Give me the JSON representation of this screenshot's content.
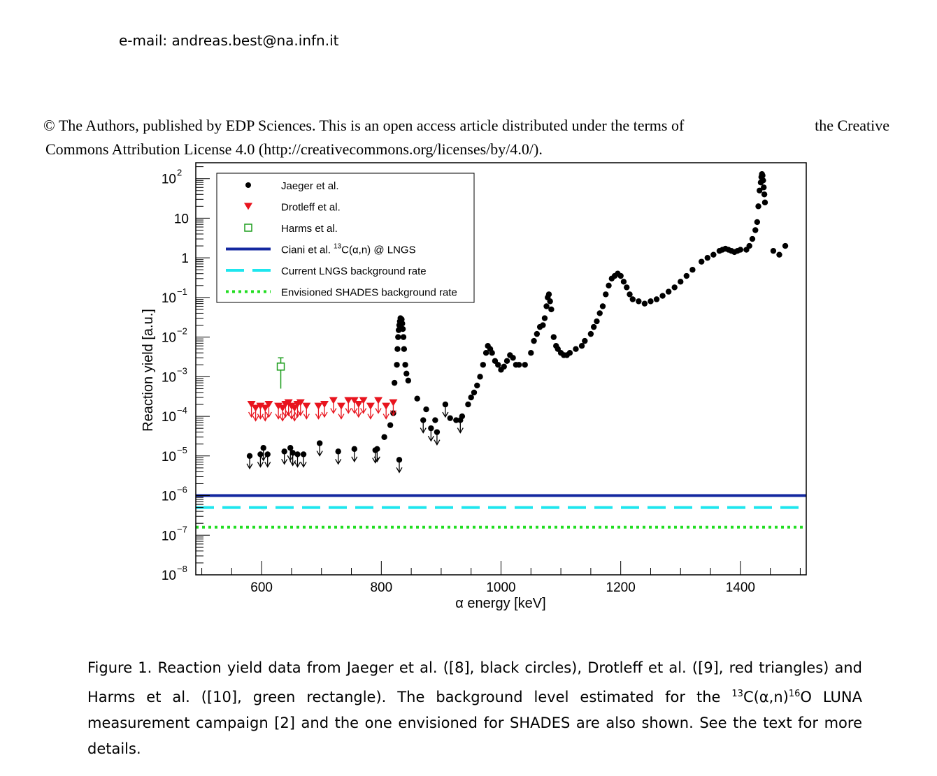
{
  "header": {
    "email": "e-mail: andreas.best@na.infn.it",
    "license_line1_left": "© The Authors, published by EDP Sciences. This is an open access article distributed under the terms of",
    "license_line1_right": "the Creative",
    "license_line2": "Commons Attribution License 4.0 (http://creativecommons.org/licenses/by/4.0/)."
  },
  "caption": {
    "part1": "Figure 1. Reaction yield data from Jaeger et al. ([8], black circles), Drotleff et al. ([9], red triangles) and Harms et al. ([10], green rectangle). The background level estimated for the ",
    "sup1": "13",
    "part2": "C(α,n)",
    "sup2": "16",
    "part3": "O LUNA measurement campaign [2] and the one envisioned for SHADES are also shown. See the text for more details."
  },
  "chart_data": {
    "type": "scatter",
    "xlabel": "α energy [keV]",
    "ylabel": "Reaction yield [a.u.]",
    "xlim": [
      490,
      1510
    ],
    "ylim_log10": [
      -8,
      2.4
    ],
    "yscale": "log",
    "xticks": [
      600,
      800,
      1000,
      1200,
      1400
    ],
    "yticks": [
      {
        "exp": 2,
        "label": "10",
        "sup": "2"
      },
      {
        "exp": 1,
        "label": "10",
        "sup": ""
      },
      {
        "exp": 0,
        "label": "1",
        "sup": ""
      },
      {
        "exp": -1,
        "label": "10",
        "sup": "−1"
      },
      {
        "exp": -2,
        "label": "10",
        "sup": "−2"
      },
      {
        "exp": -3,
        "label": "10",
        "sup": "−3"
      },
      {
        "exp": -4,
        "label": "10",
        "sup": "−4"
      },
      {
        "exp": -5,
        "label": "10",
        "sup": "−5"
      },
      {
        "exp": -6,
        "label": "10",
        "sup": "−6"
      },
      {
        "exp": -7,
        "label": "10",
        "sup": "−7"
      },
      {
        "exp": -8,
        "label": "10",
        "sup": "−8"
      }
    ],
    "legend_position": "top-left",
    "legend": [
      {
        "label": "Jaeger et al.",
        "sup": "",
        "label2": ""
      },
      {
        "label": "Drotleff et al.",
        "sup": "",
        "label2": ""
      },
      {
        "label": "Harms et al.",
        "sup": "",
        "label2": ""
      },
      {
        "label": "Ciani et al. ",
        "sup": "13",
        "label2": "C(α,n) @ LNGS"
      },
      {
        "label": "Current LNGS background rate",
        "sup": "",
        "label2": ""
      },
      {
        "label": "Envisioned SHADES background rate",
        "sup": "",
        "label2": ""
      }
    ],
    "colors": {
      "jaeger": "#000000",
      "drotleff": "#e8141e",
      "harms": "#1e9e1e",
      "ciani": "#1428a0",
      "lngs": "#1ee6ee",
      "shades": "#22dd22"
    },
    "lines": [
      {
        "name": "Ciani et al. 13C(α,n) @ LNGS",
        "y": 1e-06,
        "style": "solid"
      },
      {
        "name": "Current LNGS background rate",
        "y": 5e-07,
        "style": "dashed"
      },
      {
        "name": "Envisioned SHADES background rate",
        "y": 1.6e-07,
        "style": "dotted"
      }
    ],
    "series": [
      {
        "name": "Jaeger et al.",
        "upper_limits": [
          [
            580,
            1e-05
          ],
          [
            598,
            1.1e-05
          ],
          [
            603,
            1.6e-05
          ],
          [
            610,
            1.1e-05
          ],
          [
            638,
            1.3e-05
          ],
          [
            648,
            1.6e-05
          ],
          [
            652,
            1.2e-05
          ],
          [
            660,
            1.1e-05
          ],
          [
            670,
            1.1e-05
          ],
          [
            697,
            2.1e-05
          ],
          [
            728,
            1.3e-05
          ],
          [
            755,
            1.5e-05
          ],
          [
            790,
            1.4e-05
          ],
          [
            793,
            1.5e-05
          ],
          [
            830,
            8e-06
          ],
          [
            870,
            8e-05
          ],
          [
            883,
            5e-05
          ],
          [
            893,
            4e-05
          ],
          [
            907,
            0.0002
          ],
          [
            932,
            8e-05
          ]
        ],
        "points": [
          [
            805,
            3e-05
          ],
          [
            815,
            6e-05
          ],
          [
            820,
            0.00012
          ],
          [
            822,
            0.0007
          ],
          [
            826,
            0.002
          ],
          [
            827,
            0.005
          ],
          [
            828,
            0.01
          ],
          [
            829,
            0.015
          ],
          [
            830,
            0.02
          ],
          [
            831,
            0.025
          ],
          [
            832,
            0.03
          ],
          [
            834,
            0.028
          ],
          [
            835,
            0.022
          ],
          [
            836,
            0.016
          ],
          [
            837,
            0.01
          ],
          [
            838,
            0.005
          ],
          [
            840,
            0.002
          ],
          [
            842,
            0.0012
          ],
          [
            845,
            0.0008
          ],
          [
            860,
            0.00028
          ],
          [
            875,
            0.00015
          ],
          [
            890,
            8e-05
          ],
          [
            915,
            9e-05
          ],
          [
            925,
            8e-05
          ],
          [
            935,
            0.0001
          ],
          [
            945,
            0.0002
          ],
          [
            950,
            0.0003
          ],
          [
            955,
            0.0004
          ],
          [
            960,
            0.0006
          ],
          [
            965,
            0.001
          ],
          [
            970,
            0.002
          ],
          [
            975,
            0.004
          ],
          [
            978,
            0.006
          ],
          [
            982,
            0.005
          ],
          [
            985,
            0.004
          ],
          [
            990,
            0.0025
          ],
          [
            995,
            0.002
          ],
          [
            1000,
            0.0015
          ],
          [
            1005,
            0.0018
          ],
          [
            1010,
            0.0025
          ],
          [
            1015,
            0.0035
          ],
          [
            1020,
            0.003
          ],
          [
            1025,
            0.002
          ],
          [
            1030,
            0.002
          ],
          [
            1040,
            0.002
          ],
          [
            1050,
            0.004
          ],
          [
            1055,
            0.008
          ],
          [
            1060,
            0.012
          ],
          [
            1065,
            0.018
          ],
          [
            1070,
            0.02
          ],
          [
            1073,
            0.03
          ],
          [
            1076,
            0.06
          ],
          [
            1078,
            0.1
          ],
          [
            1080,
            0.12
          ],
          [
            1082,
            0.08
          ],
          [
            1084,
            0.05
          ],
          [
            1088,
            0.01
          ],
          [
            1092,
            0.006
          ],
          [
            1095,
            0.005
          ],
          [
            1100,
            0.004
          ],
          [
            1105,
            0.0035
          ],
          [
            1110,
            0.0035
          ],
          [
            1115,
            0.004
          ],
          [
            1125,
            0.005
          ],
          [
            1135,
            0.006
          ],
          [
            1140,
            0.008
          ],
          [
            1150,
            0.012
          ],
          [
            1155,
            0.018
          ],
          [
            1160,
            0.025
          ],
          [
            1165,
            0.04
          ],
          [
            1170,
            0.06
          ],
          [
            1175,
            0.12
          ],
          [
            1180,
            0.2
          ],
          [
            1185,
            0.3
          ],
          [
            1190,
            0.35
          ],
          [
            1195,
            0.4
          ],
          [
            1200,
            0.35
          ],
          [
            1205,
            0.25
          ],
          [
            1210,
            0.18
          ],
          [
            1215,
            0.12
          ],
          [
            1220,
            0.09
          ],
          [
            1230,
            0.08
          ],
          [
            1240,
            0.07
          ],
          [
            1250,
            0.08
          ],
          [
            1260,
            0.09
          ],
          [
            1270,
            0.11
          ],
          [
            1280,
            0.14
          ],
          [
            1290,
            0.18
          ],
          [
            1300,
            0.25
          ],
          [
            1310,
            0.35
          ],
          [
            1320,
            0.5
          ],
          [
            1335,
            0.8
          ],
          [
            1345,
            1.0
          ],
          [
            1355,
            1.2
          ],
          [
            1365,
            1.5
          ],
          [
            1370,
            1.6
          ],
          [
            1375,
            1.7
          ],
          [
            1380,
            1.6
          ],
          [
            1385,
            1.5
          ],
          [
            1390,
            1.4
          ],
          [
            1395,
            1.5
          ],
          [
            1400,
            1.6
          ],
          [
            1410,
            1.6
          ],
          [
            1415,
            2.0
          ],
          [
            1420,
            3.0
          ],
          [
            1425,
            5.0
          ],
          [
            1428,
            8.0
          ],
          [
            1430,
            20.0
          ],
          [
            1432,
            50.0
          ],
          [
            1434,
            80.0
          ],
          [
            1435,
            110.0
          ],
          [
            1436,
            130.0
          ],
          [
            1437,
            120.0
          ],
          [
            1438,
            90.0
          ],
          [
            1439,
            60.0
          ],
          [
            1440,
            40.0
          ],
          [
            1441,
            25.0
          ],
          [
            1455,
            1.5
          ],
          [
            1465,
            1.2
          ],
          [
            1475,
            2.0
          ]
        ]
      },
      {
        "name": "Drotleff et al.",
        "upper_limits": [
          [
            583,
            0.0002
          ],
          [
            590,
            0.00016
          ],
          [
            598,
            0.00018
          ],
          [
            606,
            0.00016
          ],
          [
            612,
            0.0002
          ],
          [
            628,
            0.00018
          ],
          [
            635,
            0.00016
          ],
          [
            640,
            0.0002
          ],
          [
            645,
            0.00022
          ],
          [
            650,
            0.00018
          ],
          [
            655,
            0.00016
          ],
          [
            660,
            0.0002
          ],
          [
            665,
            0.00022
          ],
          [
            675,
            0.00018
          ],
          [
            695,
            0.00018
          ],
          [
            705,
            0.0002
          ],
          [
            720,
            0.00025
          ],
          [
            733,
            0.00018
          ],
          [
            745,
            0.00025
          ],
          [
            755,
            0.00025
          ],
          [
            762,
            0.0002
          ],
          [
            770,
            0.00025
          ],
          [
            782,
            0.00018
          ],
          [
            795,
            0.00025
          ],
          [
            808,
            0.00018
          ],
          [
            820,
            0.00022
          ]
        ]
      },
      {
        "name": "Harms et al.",
        "points": [
          [
            632,
            0.0018
          ]
        ],
        "error_low": 0.0005,
        "error_high": 0.003
      }
    ]
  }
}
